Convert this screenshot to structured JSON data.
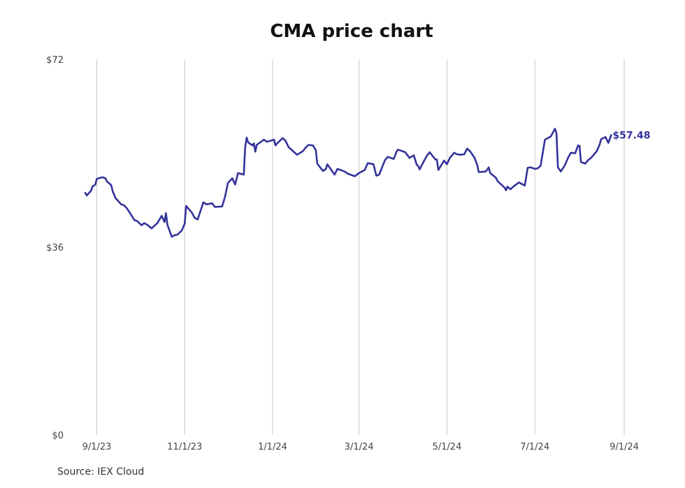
{
  "chart_data": {
    "type": "line",
    "title": "CMA price chart",
    "xlabel": "",
    "ylabel": "",
    "y_ticks": [
      {
        "value": 0,
        "label": "$0"
      },
      {
        "value": 36,
        "label": "$36"
      },
      {
        "value": 72,
        "label": "$72"
      }
    ],
    "x_ticks": [
      {
        "date": "2023-09-01",
        "label": "9/1/23"
      },
      {
        "date": "2023-11-01",
        "label": "11/1/23"
      },
      {
        "date": "2024-01-01",
        "label": "1/1/24"
      },
      {
        "date": "2024-03-01",
        "label": "3/1/24"
      },
      {
        "date": "2024-05-01",
        "label": "5/1/24"
      },
      {
        "date": "2024-07-01",
        "label": "7/1/24"
      },
      {
        "date": "2024-09-01",
        "label": "9/1/24"
      }
    ],
    "xlim": [
      "2023-08-24",
      "2024-09-01"
    ],
    "ylim": [
      0,
      72
    ],
    "grid": "vertical",
    "line_color": "#33339a",
    "last_value_label": "$57.48",
    "series": [
      {
        "points": [
          [
            "2023-08-24",
            46.4
          ],
          [
            "2023-08-25",
            45.9
          ],
          [
            "2023-08-28",
            46.8
          ],
          [
            "2023-08-29",
            47.6
          ],
          [
            "2023-08-31",
            48.0
          ],
          [
            "2023-09-01",
            49.1
          ],
          [
            "2023-09-05",
            49.4
          ],
          [
            "2023-09-07",
            49.2
          ],
          [
            "2023-09-08",
            48.6
          ],
          [
            "2023-09-11",
            47.9
          ],
          [
            "2023-09-12",
            46.7
          ],
          [
            "2023-09-14",
            45.4
          ],
          [
            "2023-09-18",
            44.2
          ],
          [
            "2023-09-20",
            44.0
          ],
          [
            "2023-09-22",
            43.4
          ],
          [
            "2023-09-25",
            42.1
          ],
          [
            "2023-09-27",
            41.2
          ],
          [
            "2023-09-29",
            41.0
          ],
          [
            "2023-10-02",
            40.2
          ],
          [
            "2023-10-04",
            40.6
          ],
          [
            "2023-10-06",
            40.3
          ],
          [
            "2023-10-09",
            39.6
          ],
          [
            "2023-10-11",
            40.1
          ],
          [
            "2023-10-13",
            40.6
          ],
          [
            "2023-10-16",
            42.0
          ],
          [
            "2023-10-18",
            40.8
          ],
          [
            "2023-10-19",
            42.5
          ],
          [
            "2023-10-20",
            40.3
          ],
          [
            "2023-10-23",
            38.0
          ],
          [
            "2023-10-25",
            38.3
          ],
          [
            "2023-10-27",
            38.4
          ],
          [
            "2023-10-30",
            39.2
          ],
          [
            "2023-11-01",
            40.5
          ],
          [
            "2023-11-02",
            43.9
          ],
          [
            "2023-11-06",
            42.6
          ],
          [
            "2023-11-08",
            41.6
          ],
          [
            "2023-11-10",
            41.3
          ],
          [
            "2023-11-14",
            44.6
          ],
          [
            "2023-11-16",
            44.2
          ],
          [
            "2023-11-20",
            44.4
          ],
          [
            "2023-11-22",
            43.7
          ],
          [
            "2023-11-27",
            43.8
          ],
          [
            "2023-11-29",
            45.7
          ],
          [
            "2023-12-01",
            48.3
          ],
          [
            "2023-12-04",
            49.2
          ],
          [
            "2023-12-06",
            48.0
          ],
          [
            "2023-12-08",
            50.2
          ],
          [
            "2023-12-12",
            49.9
          ],
          [
            "2023-12-13",
            55.2
          ],
          [
            "2023-12-14",
            57.0
          ],
          [
            "2023-12-15",
            56.1
          ],
          [
            "2023-12-18",
            55.5
          ],
          [
            "2023-12-19",
            55.9
          ],
          [
            "2023-12-20",
            54.3
          ],
          [
            "2023-12-21",
            55.6
          ],
          [
            "2023-12-26",
            56.6
          ],
          [
            "2023-12-28",
            56.2
          ],
          [
            "2024-01-02",
            56.6
          ],
          [
            "2024-01-03",
            55.5
          ],
          [
            "2024-01-05",
            56.1
          ],
          [
            "2024-01-08",
            56.9
          ],
          [
            "2024-01-10",
            56.4
          ],
          [
            "2024-01-12",
            55.2
          ],
          [
            "2024-01-16",
            54.2
          ],
          [
            "2024-01-18",
            53.7
          ],
          [
            "2024-01-22",
            54.4
          ],
          [
            "2024-01-24",
            55.1
          ],
          [
            "2024-01-26",
            55.6
          ],
          [
            "2024-01-29",
            55.5
          ],
          [
            "2024-01-31",
            54.6
          ],
          [
            "2024-02-01",
            52.0
          ],
          [
            "2024-02-05",
            50.6
          ],
          [
            "2024-02-07",
            51.0
          ],
          [
            "2024-02-08",
            51.9
          ],
          [
            "2024-02-13",
            49.9
          ],
          [
            "2024-02-15",
            51.0
          ],
          [
            "2024-02-20",
            50.5
          ],
          [
            "2024-02-22",
            50.1
          ],
          [
            "2024-02-27",
            49.6
          ],
          [
            "2024-03-01",
            50.2
          ],
          [
            "2024-03-05",
            50.8
          ],
          [
            "2024-03-07",
            52.1
          ],
          [
            "2024-03-11",
            51.9
          ],
          [
            "2024-03-13",
            49.7
          ],
          [
            "2024-03-15",
            49.9
          ],
          [
            "2024-03-19",
            52.7
          ],
          [
            "2024-03-21",
            53.3
          ],
          [
            "2024-03-25",
            52.9
          ],
          [
            "2024-03-27",
            54.3
          ],
          [
            "2024-03-28",
            54.7
          ],
          [
            "2024-04-02",
            54.2
          ],
          [
            "2024-04-05",
            53.1
          ],
          [
            "2024-04-08",
            53.6
          ],
          [
            "2024-04-10",
            51.8
          ],
          [
            "2024-04-11",
            51.6
          ],
          [
            "2024-04-12",
            50.9
          ],
          [
            "2024-04-15",
            52.5
          ],
          [
            "2024-04-17",
            53.5
          ],
          [
            "2024-04-19",
            54.2
          ],
          [
            "2024-04-23",
            52.8
          ],
          [
            "2024-04-24",
            52.8
          ],
          [
            "2024-04-25",
            50.8
          ],
          [
            "2024-04-29",
            52.6
          ],
          [
            "2024-05-01",
            51.9
          ],
          [
            "2024-05-03",
            53.1
          ],
          [
            "2024-05-06",
            54.1
          ],
          [
            "2024-05-08",
            53.8
          ],
          [
            "2024-05-10",
            53.7
          ],
          [
            "2024-05-13",
            53.8
          ],
          [
            "2024-05-15",
            54.9
          ],
          [
            "2024-05-17",
            54.4
          ],
          [
            "2024-05-20",
            53.2
          ],
          [
            "2024-05-22",
            51.8
          ],
          [
            "2024-05-23",
            50.4
          ],
          [
            "2024-05-28",
            50.5
          ],
          [
            "2024-05-30",
            51.3
          ],
          [
            "2024-05-31",
            50.2
          ],
          [
            "2024-06-04",
            49.3
          ],
          [
            "2024-06-05",
            48.7
          ],
          [
            "2024-06-10",
            47.4
          ],
          [
            "2024-06-11",
            46.9
          ],
          [
            "2024-06-12",
            47.6
          ],
          [
            "2024-06-14",
            47.1
          ],
          [
            "2024-06-17",
            47.8
          ],
          [
            "2024-06-20",
            48.4
          ],
          [
            "2024-06-24",
            47.8
          ],
          [
            "2024-06-26",
            51.2
          ],
          [
            "2024-06-28",
            51.3
          ],
          [
            "2024-07-01",
            51.0
          ],
          [
            "2024-07-03",
            51.1
          ],
          [
            "2024-07-05",
            51.6
          ],
          [
            "2024-07-08",
            56.6
          ],
          [
            "2024-07-10",
            56.9
          ],
          [
            "2024-07-12",
            57.2
          ],
          [
            "2024-07-15",
            58.7
          ],
          [
            "2024-07-16",
            57.9
          ],
          [
            "2024-07-17",
            51.3
          ],
          [
            "2024-07-19",
            50.5
          ],
          [
            "2024-07-22",
            51.8
          ],
          [
            "2024-07-24",
            53.1
          ],
          [
            "2024-07-26",
            54.1
          ],
          [
            "2024-07-29",
            54.0
          ],
          [
            "2024-07-31",
            55.5
          ],
          [
            "2024-08-01",
            55.4
          ],
          [
            "2024-08-02",
            52.3
          ],
          [
            "2024-08-05",
            52.0
          ],
          [
            "2024-08-07",
            52.7
          ],
          [
            "2024-08-09",
            53.1
          ],
          [
            "2024-08-13",
            54.4
          ],
          [
            "2024-08-15",
            55.7
          ],
          [
            "2024-08-16",
            56.7
          ],
          [
            "2024-08-19",
            57.1
          ],
          [
            "2024-08-21",
            56.0
          ],
          [
            "2024-08-23",
            57.48
          ]
        ]
      }
    ]
  },
  "source": {
    "text": "Source: IEX Cloud"
  }
}
